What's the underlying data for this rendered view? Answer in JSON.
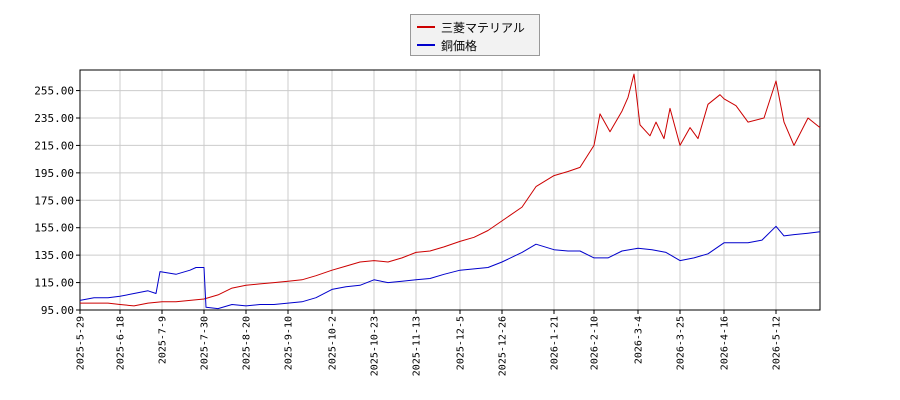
{
  "chart_data": {
    "type": "line",
    "title": "",
    "xlabel": "",
    "ylabel": "",
    "ylim": [
      95,
      270
    ],
    "xlim": [
      "2025-05-29",
      "2026-06-03"
    ],
    "grid": true,
    "legend_position": "top-center",
    "y_ticks": [
      "95.00",
      "115.00",
      "135.00",
      "155.00",
      "175.00",
      "195.00",
      "215.00",
      "235.00",
      "255.00"
    ],
    "x_ticks": [
      "2025-5-29",
      "2025-6-18",
      "2025-7-9",
      "2025-7-30",
      "2025-8-20",
      "2025-9-10",
      "2025-10-2",
      "2025-10-23",
      "2025-11-13",
      "2025-12-5",
      "2025-12-26",
      "2026-1-21",
      "2026-2-10",
      "2026-3-4",
      "2026-3-25",
      "2026-4-16",
      "2026-5-12"
    ],
    "series": [
      {
        "name": "三菱マテリアル",
        "color": "#cc0000",
        "points": [
          [
            "2025-05-29",
            100
          ],
          [
            "2025-06-05",
            100
          ],
          [
            "2025-06-12",
            100
          ],
          [
            "2025-06-18",
            99
          ],
          [
            "2025-06-25",
            98
          ],
          [
            "2025-07-02",
            100
          ],
          [
            "2025-07-09",
            101
          ],
          [
            "2025-07-16",
            101
          ],
          [
            "2025-07-23",
            102
          ],
          [
            "2025-07-30",
            103
          ],
          [
            "2025-08-06",
            106
          ],
          [
            "2025-08-13",
            111
          ],
          [
            "2025-08-20",
            113
          ],
          [
            "2025-08-27",
            114
          ],
          [
            "2025-09-03",
            115
          ],
          [
            "2025-09-10",
            116
          ],
          [
            "2025-09-17",
            117
          ],
          [
            "2025-09-24",
            120
          ],
          [
            "2025-10-02",
            124
          ],
          [
            "2025-10-09",
            127
          ],
          [
            "2025-10-16",
            130
          ],
          [
            "2025-10-23",
            131
          ],
          [
            "2025-10-30",
            130
          ],
          [
            "2025-11-06",
            133
          ],
          [
            "2025-11-13",
            137
          ],
          [
            "2025-11-20",
            138
          ],
          [
            "2025-11-27",
            141
          ],
          [
            "2025-12-05",
            145
          ],
          [
            "2025-12-12",
            148
          ],
          [
            "2025-12-19",
            153
          ],
          [
            "2025-12-26",
            160
          ],
          [
            "2026-01-05",
            170
          ],
          [
            "2026-01-12",
            185
          ],
          [
            "2026-01-21",
            193
          ],
          [
            "2026-01-28",
            196
          ],
          [
            "2026-02-03",
            199
          ],
          [
            "2026-02-10",
            215
          ],
          [
            "2026-02-13",
            238
          ],
          [
            "2026-02-18",
            225
          ],
          [
            "2026-02-24",
            240
          ],
          [
            "2026-02-27",
            250
          ],
          [
            "2026-03-02",
            267
          ],
          [
            "2026-03-05",
            230
          ],
          [
            "2026-03-10",
            222
          ],
          [
            "2026-03-13",
            232
          ],
          [
            "2026-03-17",
            220
          ],
          [
            "2026-03-20",
            242
          ],
          [
            "2026-03-25",
            215
          ],
          [
            "2026-03-30",
            228
          ],
          [
            "2026-04-03",
            220
          ],
          [
            "2026-04-08",
            245
          ],
          [
            "2026-04-14",
            252
          ],
          [
            "2026-04-16",
            249
          ],
          [
            "2026-04-22",
            244
          ],
          [
            "2026-04-28",
            232
          ],
          [
            "2026-05-06",
            235
          ],
          [
            "2026-05-12",
            262
          ],
          [
            "2026-05-16",
            232
          ],
          [
            "2026-05-21",
            215
          ],
          [
            "2026-05-28",
            235
          ],
          [
            "2026-06-03",
            228
          ]
        ]
      },
      {
        "name": "銅価格",
        "color": "#0000cc",
        "points": [
          [
            "2025-05-29",
            102
          ],
          [
            "2025-06-05",
            104
          ],
          [
            "2025-06-12",
            104
          ],
          [
            "2025-06-18",
            105
          ],
          [
            "2025-06-25",
            107
          ],
          [
            "2025-07-02",
            109
          ],
          [
            "2025-07-06",
            107
          ],
          [
            "2025-07-08",
            123
          ],
          [
            "2025-07-16",
            121
          ],
          [
            "2025-07-23",
            124
          ],
          [
            "2025-07-26",
            126
          ],
          [
            "2025-07-30",
            126
          ],
          [
            "2025-07-31",
            97
          ],
          [
            "2025-08-06",
            96
          ],
          [
            "2025-08-13",
            99
          ],
          [
            "2025-08-20",
            98
          ],
          [
            "2025-08-27",
            99
          ],
          [
            "2025-09-03",
            99
          ],
          [
            "2025-09-10",
            100
          ],
          [
            "2025-09-17",
            101
          ],
          [
            "2025-09-24",
            104
          ],
          [
            "2025-10-02",
            110
          ],
          [
            "2025-10-09",
            112
          ],
          [
            "2025-10-16",
            113
          ],
          [
            "2025-10-23",
            117
          ],
          [
            "2025-10-30",
            115
          ],
          [
            "2025-11-06",
            116
          ],
          [
            "2025-11-13",
            117
          ],
          [
            "2025-11-20",
            118
          ],
          [
            "2025-11-27",
            121
          ],
          [
            "2025-12-05",
            124
          ],
          [
            "2025-12-12",
            125
          ],
          [
            "2025-12-19",
            126
          ],
          [
            "2025-12-26",
            130
          ],
          [
            "2026-01-05",
            137
          ],
          [
            "2026-01-12",
            143
          ],
          [
            "2026-01-21",
            139
          ],
          [
            "2026-01-28",
            138
          ],
          [
            "2026-02-03",
            138
          ],
          [
            "2026-02-10",
            133
          ],
          [
            "2026-02-17",
            133
          ],
          [
            "2026-02-24",
            138
          ],
          [
            "2026-03-04",
            140
          ],
          [
            "2026-03-11",
            139
          ],
          [
            "2026-03-18",
            137
          ],
          [
            "2026-03-25",
            131
          ],
          [
            "2026-04-01",
            133
          ],
          [
            "2026-04-08",
            136
          ],
          [
            "2026-04-16",
            144
          ],
          [
            "2026-04-22",
            144
          ],
          [
            "2026-04-28",
            144
          ],
          [
            "2026-05-05",
            146
          ],
          [
            "2026-05-12",
            156
          ],
          [
            "2026-05-16",
            149
          ],
          [
            "2026-05-21",
            150
          ],
          [
            "2026-05-28",
            151
          ],
          [
            "2026-06-03",
            152
          ]
        ]
      }
    ]
  }
}
